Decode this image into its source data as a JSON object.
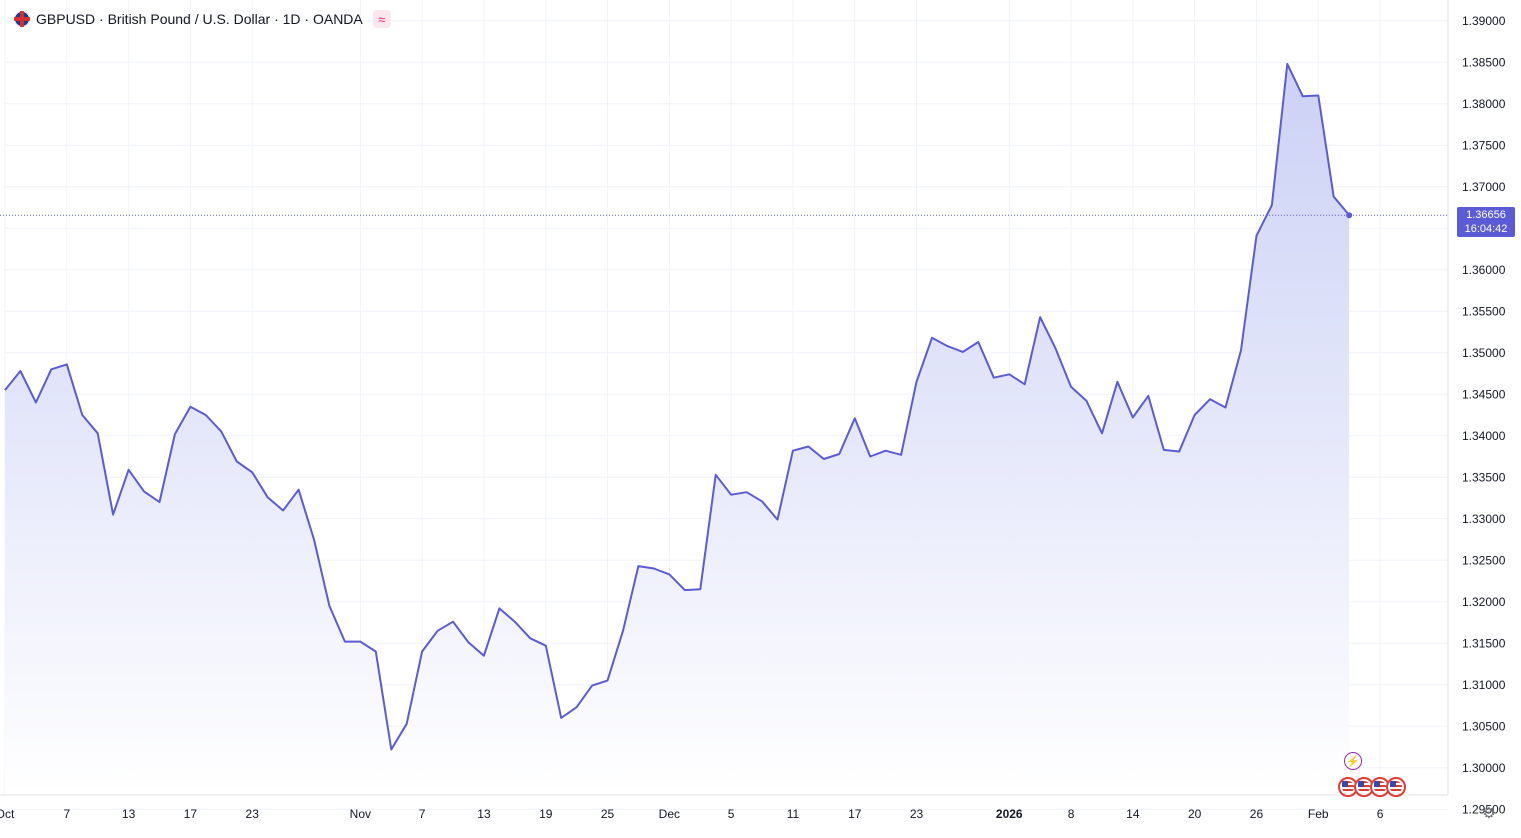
{
  "header": {
    "title": "GBPUSD · British Pound / U.S. Dollar · 1D · OANDA",
    "indicator_icon": "≈"
  },
  "colors": {
    "line": "#5b5bd6",
    "fill_top": "#c9cff5",
    "fill_bottom": "#ffffff",
    "grid": "#f0f3fa",
    "axis_text": "#131722",
    "price_tag": "#5b5bd6"
  },
  "last_price": {
    "value": "1.36656",
    "time": "16:04:42"
  },
  "icons": [
    "uk-flag-icon",
    "indicator-wave-icon",
    "lightning-icon",
    "event-flag-icon",
    "gear-icon"
  ],
  "chart_data": {
    "type": "area",
    "title": "GBPUSD · British Pound / U.S. Dollar · 1D · OANDA",
    "ylim": [
      1.2925,
      1.3925
    ],
    "y_ticks": [
      "1.39000",
      "1.38500",
      "1.38000",
      "1.37500",
      "1.37000",
      "1.36500",
      "1.36000",
      "1.35500",
      "1.35000",
      "1.34500",
      "1.34000",
      "1.33500",
      "1.33000",
      "1.32500",
      "1.32000",
      "1.31500",
      "1.31000",
      "1.30500",
      "1.30000",
      "1.29500"
    ],
    "x_ticks": [
      {
        "label": "Oct",
        "i": 0
      },
      {
        "label": "7",
        "i": 4
      },
      {
        "label": "13",
        "i": 8
      },
      {
        "label": "17",
        "i": 12
      },
      {
        "label": "23",
        "i": 16
      },
      {
        "label": "Nov",
        "i": 23
      },
      {
        "label": "7",
        "i": 27
      },
      {
        "label": "13",
        "i": 31
      },
      {
        "label": "19",
        "i": 35
      },
      {
        "label": "25",
        "i": 39
      },
      {
        "label": "Dec",
        "i": 43
      },
      {
        "label": "5",
        "i": 47
      },
      {
        "label": "11",
        "i": 51
      },
      {
        "label": "17",
        "i": 55
      },
      {
        "label": "23",
        "i": 59
      },
      {
        "label": "2026",
        "i": 65
      },
      {
        "label": "8",
        "i": 69
      },
      {
        "label": "14",
        "i": 73
      },
      {
        "label": "20",
        "i": 77
      },
      {
        "label": "26",
        "i": 81
      },
      {
        "label": "Feb",
        "i": 85
      },
      {
        "label": "6",
        "i": 89
      }
    ],
    "grid": true,
    "values": [
      1.3455,
      1.3478,
      1.344,
      1.348,
      1.3486,
      1.3425,
      1.3403,
      1.3305,
      1.3359,
      1.3333,
      1.332,
      1.3402,
      1.3435,
      1.3425,
      1.3405,
      1.3369,
      1.3356,
      1.3326,
      1.331,
      1.3335,
      1.3275,
      1.3195,
      1.3152,
      1.3152,
      1.314,
      1.3022,
      1.3053,
      1.314,
      1.3165,
      1.3176,
      1.3151,
      1.3135,
      1.3192,
      1.3176,
      1.3156,
      1.3147,
      1.306,
      1.3073,
      1.3099,
      1.3105,
      1.3165,
      1.3243,
      1.324,
      1.3233,
      1.3214,
      1.3215,
      1.3353,
      1.3329,
      1.3332,
      1.3321,
      1.3299,
      1.3382,
      1.3387,
      1.3372,
      1.3378,
      1.3421,
      1.3375,
      1.3382,
      1.3377,
      1.3465,
      1.3518,
      1.3508,
      1.3501,
      1.3513,
      1.347,
      1.3474,
      1.3462,
      1.3543,
      1.3505,
      1.3459,
      1.3442,
      1.3403,
      1.3465,
      1.3422,
      1.3448,
      1.3383,
      1.3381,
      1.3425,
      1.3444,
      1.3434,
      1.3503,
      1.3641,
      1.3678,
      1.3848,
      1.3809,
      1.381,
      1.3688,
      1.3666
    ],
    "last_value": 1.36656
  }
}
